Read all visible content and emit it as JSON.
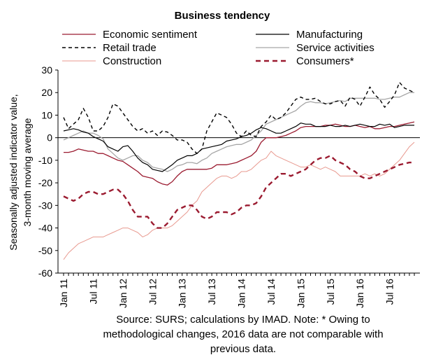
{
  "chart_data": {
    "type": "line",
    "title": "Business tendency",
    "ylabel_lines": [
      "Seasonally adjusted indicator value,",
      "3-month moving average"
    ],
    "ylim": [
      -60,
      30
    ],
    "yticks": [
      30,
      20,
      10,
      0,
      -10,
      -20,
      -30,
      -40,
      -50,
      -60
    ],
    "x_start": "2011-01",
    "x_tick_labels": [
      "Jan 11",
      "Jul 11",
      "Jan 12",
      "Jul 12",
      "Jan 13",
      "Jul 13",
      "Jan 14",
      "Jul 14",
      "Jan 15",
      "Jul 15",
      "Jan 16",
      "Jul 16"
    ],
    "series": [
      {
        "name": "Economic sentiment",
        "color": "#9b1b30",
        "dash": "none",
        "width": 1.3,
        "values": [
          -6.5,
          -6.5,
          -6,
          -5,
          -5.5,
          -6,
          -6,
          -7,
          -7,
          -8,
          -9,
          -10,
          -10.5,
          -12,
          -13.5,
          -15,
          -17,
          -17.5,
          -18,
          -19.5,
          -20.5,
          -21,
          -19.5,
          -17,
          -15,
          -14,
          -14,
          -14,
          -14,
          -14,
          -13.5,
          -12,
          -12,
          -12,
          -11.5,
          -11,
          -10,
          -9,
          -8,
          -6,
          -2,
          0,
          0,
          0,
          0.5,
          1,
          2,
          3,
          4.5,
          5,
          5,
          5,
          5,
          5.5,
          5.5,
          6,
          5.5,
          5,
          5,
          5.5,
          5,
          4.5,
          5,
          4,
          4,
          4.5,
          5,
          5,
          5.5,
          6,
          6.5,
          7
        ]
      },
      {
        "name": "Manufacturing",
        "color": "#000000",
        "dash": "none",
        "width": 1.2,
        "values": [
          3,
          3.5,
          4,
          3.5,
          2.5,
          2,
          0.5,
          -0.5,
          -1.5,
          -4,
          -5,
          -6,
          -4,
          -3.5,
          -6,
          -9,
          -11,
          -12,
          -14,
          -14.5,
          -15,
          -13.5,
          -12,
          -10,
          -9,
          -8,
          -8,
          -7,
          -5,
          -4.5,
          -4,
          -3.5,
          -3,
          -1.5,
          -1,
          -0.5,
          0.5,
          1,
          2,
          3.5,
          4.5,
          4,
          3,
          2,
          2,
          3,
          4,
          5,
          6.5,
          6,
          6,
          5,
          5,
          5,
          5.5,
          5,
          5,
          5.5,
          5,
          5.5,
          6,
          5.5,
          5,
          5,
          6,
          5.5,
          6,
          4.5,
          5,
          5.5,
          5.5,
          5.5
        ]
      },
      {
        "name": "Retail trade",
        "color": "#000000",
        "dash": "5,4",
        "width": 1.4,
        "values": [
          9,
          4,
          6,
          8,
          13,
          9,
          3,
          3,
          5,
          9,
          15,
          14,
          11,
          8,
          5,
          3,
          4,
          2,
          3,
          1,
          3,
          2.5,
          1,
          -1,
          -1,
          -2,
          -5,
          -7,
          -5,
          3,
          7,
          11,
          10,
          9,
          6,
          2,
          0.5,
          3,
          1,
          0.5,
          5,
          7,
          10,
          8,
          9,
          11,
          14,
          17,
          18,
          17,
          17,
          17.5,
          16,
          15,
          15,
          16,
          16.5,
          14,
          18,
          17,
          14,
          18,
          22.5,
          19,
          17,
          13.5,
          16,
          19,
          24.5,
          22,
          21,
          20
        ]
      },
      {
        "name": "Service activities",
        "color": "#a6a6a6",
        "dash": "none",
        "width": 1.3,
        "values": [
          -1,
          0,
          1,
          2,
          3,
          2,
          2,
          1,
          -0.5,
          -5,
          -7,
          -9,
          -10,
          -9,
          -8,
          -8,
          -10,
          -11,
          -13,
          -13.5,
          -14,
          -15,
          -14,
          -12.5,
          -12,
          -11,
          -11,
          -11.5,
          -10,
          -9,
          -7,
          -6,
          -5,
          -4,
          -3.5,
          -3,
          -3,
          -2,
          -1,
          1,
          3,
          6,
          7,
          8,
          9,
          10,
          11,
          12,
          14,
          15.5,
          16,
          15.5,
          15.5,
          15,
          15.5,
          16,
          16.5,
          16,
          17.5,
          17.5,
          17.5,
          17.5,
          17.5,
          17.5,
          17,
          17,
          17.5,
          18,
          18,
          19,
          20,
          20
        ]
      },
      {
        "name": "Construction",
        "color": "#e8998f",
        "dash": "none",
        "width": 1,
        "values": [
          -54,
          -51,
          -49,
          -47,
          -46,
          -45,
          -44,
          -44,
          -44,
          -43,
          -42,
          -41,
          -40,
          -40,
          -41,
          -42,
          -44,
          -43,
          -41,
          -40,
          -40,
          -40,
          -39,
          -37,
          -35,
          -33,
          -30,
          -28,
          -24,
          -22,
          -20,
          -18,
          -17,
          -17,
          -18,
          -17,
          -15,
          -15,
          -14,
          -12,
          -10,
          -9,
          -6,
          -8,
          -9,
          -10,
          -11,
          -12,
          -13,
          -13,
          -12,
          -13,
          -14,
          -13,
          -14,
          -15,
          -17,
          -17,
          -17,
          -17,
          -17,
          -16,
          -17,
          -16,
          -17,
          -16,
          -14,
          -12,
          -10,
          -7,
          -4,
          -2
        ]
      },
      {
        "name": "Consumers*",
        "color": "#9b1b30",
        "dash": "7,5",
        "width": 2.4,
        "values": [
          -26,
          -27,
          -28,
          -27,
          -25,
          -24,
          -24,
          -25,
          -25,
          -24,
          -23,
          -23,
          -25,
          -28,
          -32,
          -35,
          -35,
          -35,
          -38,
          -40,
          -40,
          -38,
          -35,
          -32,
          -31,
          -30,
          -30,
          -32,
          -35,
          -36,
          -35,
          -33,
          -33,
          -33,
          -34,
          -33,
          -31,
          -30,
          -30,
          -29,
          -26,
          -22,
          -20,
          -18,
          -16,
          -16,
          -17,
          -16,
          -15,
          -14,
          -12,
          -10,
          -9,
          -9,
          -8,
          -10,
          -11,
          -12,
          -14,
          -15,
          -17,
          -18,
          -18,
          -17,
          -16,
          -15,
          -14,
          -13,
          -12,
          -11.5,
          -11,
          -11
        ]
      }
    ],
    "legend_placement": "top, two columns"
  },
  "note_lines": [
    "Source: SURS; calculations by IMAD. Note: * Owing to",
    "methodological changes, 2016 data are not comparable with",
    "previous data."
  ]
}
